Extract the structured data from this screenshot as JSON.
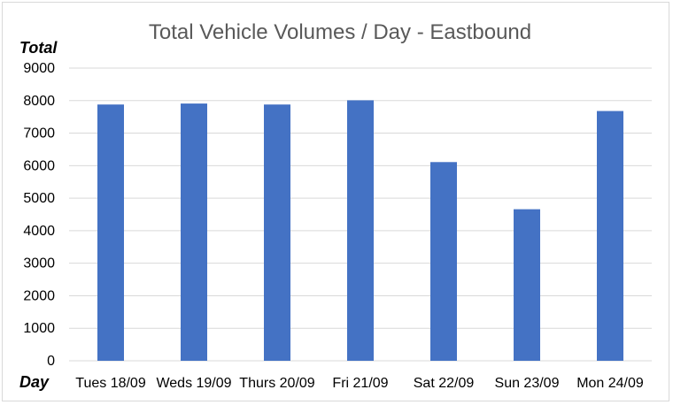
{
  "chart_data": {
    "type": "bar",
    "title": "Total Vehicle Volumes / Day - Eastbound",
    "ylabel": "Total",
    "xlabel": "Day",
    "categories": [
      "Tues 18/09",
      "Weds 19/09",
      "Thurs 20/09",
      "Fri 21/09",
      "Sat 22/09",
      "Sun 23/09",
      "Mon 24/09"
    ],
    "values": [
      7880,
      7910,
      7880,
      8010,
      6110,
      4660,
      7680
    ],
    "ylim": [
      0,
      9000
    ],
    "yticks": [
      0,
      1000,
      2000,
      3000,
      4000,
      5000,
      6000,
      7000,
      8000,
      9000
    ],
    "grid": true,
    "legend": "none",
    "colors": {
      "bar": "#4472C4",
      "grid": "#d9d9d9",
      "axis": "#d9d9d9"
    }
  }
}
